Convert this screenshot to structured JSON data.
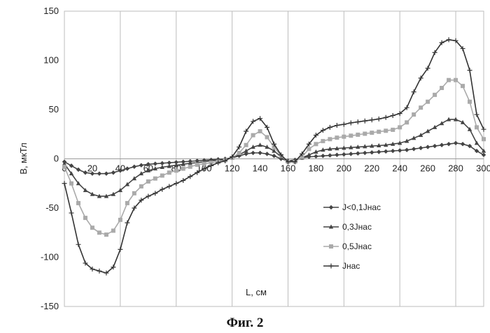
{
  "caption": "Фиг. 2",
  "chart_data": {
    "type": "line",
    "title": "",
    "xlabel": "L, см",
    "ylabel": "B, мкТл",
    "xlim": [
      0,
      300
    ],
    "ylim": [
      -150,
      150
    ],
    "x_ticks": [
      0,
      20,
      40,
      60,
      80,
      100,
      120,
      140,
      160,
      180,
      200,
      220,
      240,
      260,
      280,
      300
    ],
    "y_ticks": [
      -150,
      -100,
      -50,
      0,
      50,
      100,
      150
    ],
    "grid": "vertical",
    "legend_position": "lower-center",
    "x": [
      0,
      5,
      10,
      15,
      20,
      25,
      30,
      35,
      40,
      45,
      50,
      55,
      60,
      65,
      70,
      75,
      80,
      85,
      90,
      95,
      100,
      105,
      110,
      115,
      120,
      125,
      130,
      135,
      140,
      145,
      150,
      155,
      160,
      165,
      170,
      175,
      180,
      185,
      190,
      195,
      200,
      205,
      210,
      215,
      220,
      225,
      230,
      235,
      240,
      245,
      250,
      255,
      260,
      265,
      270,
      275,
      280,
      285,
      290,
      295,
      300
    ],
    "series": [
      {
        "name": "J<0,1Jнас",
        "color": "#444444",
        "marker": "diamond",
        "values": [
          -3,
          -7,
          -11,
          -14,
          -15,
          -15,
          -15,
          -14,
          -12,
          -10,
          -8,
          -6.5,
          -5.5,
          -5,
          -4.5,
          -4,
          -3.5,
          -3,
          -2.5,
          -2,
          -1.5,
          -1,
          -0.5,
          0,
          1,
          3,
          5,
          6,
          6,
          5,
          3,
          0,
          -2,
          -1,
          1,
          2,
          2.5,
          3,
          3.5,
          4,
          4.5,
          5,
          5.5,
          6,
          6.5,
          7,
          7.5,
          8,
          8.5,
          9,
          10,
          11,
          12,
          13,
          14,
          15,
          16,
          15,
          13,
          8,
          4
        ]
      },
      {
        "name": "0,3Jнас",
        "color": "#444444",
        "marker": "triangle",
        "values": [
          -5,
          -15,
          -25,
          -32,
          -36,
          -38,
          -38,
          -36,
          -32,
          -26,
          -20,
          -15,
          -12,
          -10,
          -8.5,
          -7.5,
          -6.5,
          -5.5,
          -4.5,
          -4,
          -3,
          -2,
          -1.5,
          -0.5,
          1,
          4,
          8,
          12,
          14,
          12,
          8,
          2,
          -2,
          -2,
          1,
          4,
          7,
          9,
          10,
          10.5,
          11,
          11.5,
          12,
          12.5,
          13,
          13.5,
          14,
          15,
          16,
          18,
          21,
          24,
          28,
          32,
          36,
          40,
          40,
          37,
          30,
          16,
          8
        ]
      },
      {
        "name": "0,5Jнас",
        "color": "#aaaaaa",
        "marker": "square",
        "values": [
          -8,
          -25,
          -45,
          -60,
          -70,
          -75,
          -77,
          -73,
          -62,
          -45,
          -35,
          -28,
          -23,
          -20,
          -17,
          -14,
          -12,
          -10,
          -8,
          -6,
          -5,
          -4,
          -3,
          -1.5,
          1,
          6,
          14,
          24,
          28,
          22,
          12,
          3,
          -3,
          -3,
          2,
          10,
          15,
          18,
          20,
          21.5,
          22.5,
          23.5,
          24.5,
          25.5,
          26.5,
          27.5,
          28.5,
          29.5,
          32,
          37,
          45,
          52,
          58,
          65,
          72,
          80,
          80,
          74,
          58,
          32,
          20
        ]
      },
      {
        "name": "Jнас",
        "color": "#333333",
        "marker": "plus",
        "values": [
          -25,
          -55,
          -87,
          -106,
          -112,
          -114,
          -116,
          -110,
          -92,
          -65,
          -50,
          -42,
          -38,
          -35,
          -31,
          -28,
          -25,
          -22,
          -18,
          -14,
          -10,
          -7,
          -4,
          -2,
          2,
          12,
          28,
          38,
          41,
          32,
          15,
          4,
          -3,
          -3,
          5,
          15,
          24,
          29,
          32,
          34,
          35,
          36.5,
          37.5,
          38.5,
          39.5,
          40.5,
          42,
          44,
          46,
          52,
          68,
          82,
          92,
          108,
          118,
          121,
          120,
          112,
          90,
          45,
          30
        ]
      }
    ]
  }
}
